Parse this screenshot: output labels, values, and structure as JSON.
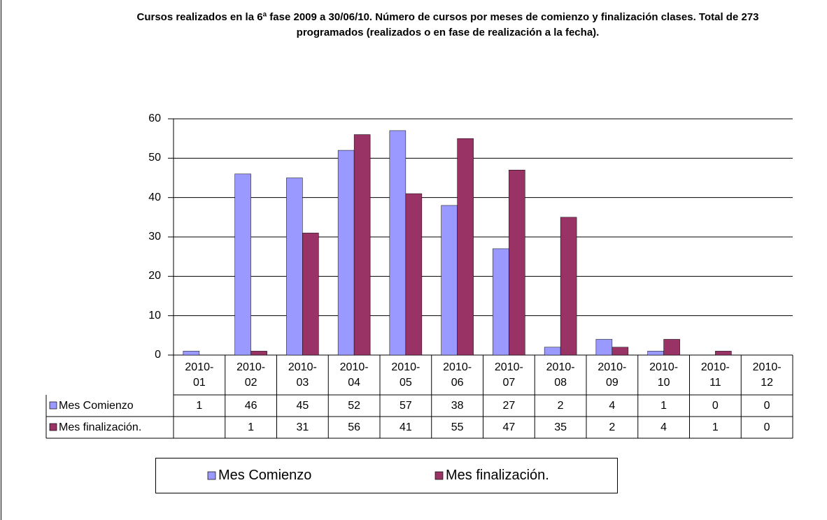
{
  "chart_data": {
    "type": "bar",
    "title": "Cursos realizados en la  6ª fase 2009 a 30/06/10. Número de cursos por meses de comienzo y finalización clases. Total de 273 programados (realizados o en fase de realización a la fecha).",
    "categories": [
      "2010-01",
      "2010-02",
      "2010-03",
      "2010-04",
      "2010-05",
      "2010-06",
      "2010-07",
      "2010-08",
      "2010-09",
      "2010-10",
      "2010-11",
      "2010-12"
    ],
    "series": [
      {
        "name": "Mes Comienzo",
        "color": "#9999ff",
        "values": [
          1,
          46,
          45,
          52,
          57,
          38,
          27,
          2,
          4,
          1,
          0,
          0
        ]
      },
      {
        "name": "Mes finalización.",
        "color": "#993366",
        "values": [
          null,
          1,
          31,
          56,
          41,
          55,
          47,
          35,
          2,
          4,
          1,
          0
        ]
      }
    ],
    "ylim": [
      0,
      60
    ],
    "yticks": [
      0,
      10,
      20,
      30,
      40,
      50,
      60
    ],
    "grid": true,
    "legend": "bottom"
  }
}
